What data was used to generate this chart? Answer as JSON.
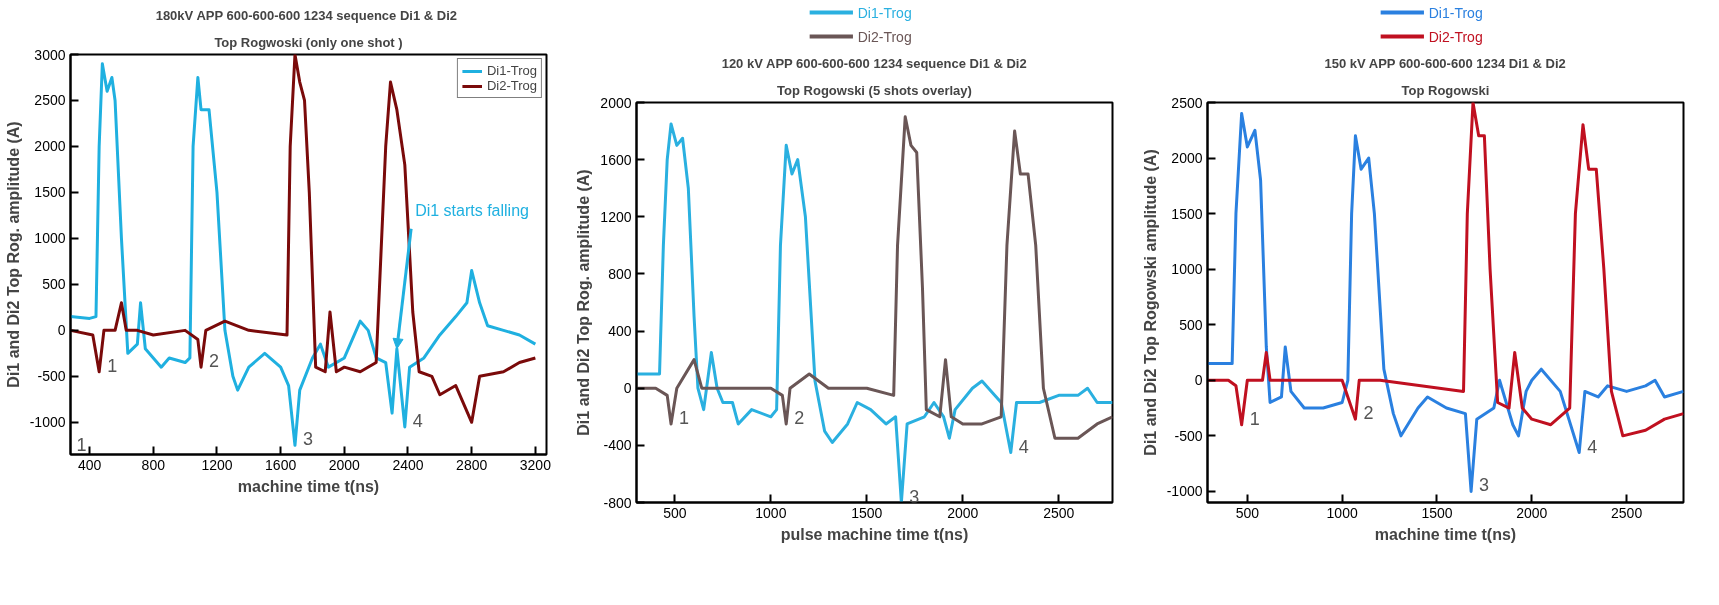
{
  "chart_data": [
    {
      "type": "line",
      "title": "180kV APP 600-600-600 1234 sequence Di1 &  Di2",
      "subtitle": "Top Rogwoski (only one shot )",
      "xlabel": "machine time t(ns)",
      "ylabel": "Di1 and Di2 Top Rog. amplitude (A)",
      "xlim": [
        280,
        3270
      ],
      "ylim": [
        -1350,
        3000
      ],
      "xticks": [
        400,
        800,
        1200,
        1600,
        2000,
        2400,
        2800,
        3200
      ],
      "yticks": [
        -1000,
        -500,
        0,
        500,
        1000,
        1500,
        2000,
        2500,
        3000
      ],
      "grid": false,
      "legend": "top right",
      "marker": "none",
      "line_style": "solid",
      "series": [
        {
          "name": "Di1-Trog",
          "color": "#1fb0e0",
          "x": [
            280,
            400,
            440,
            460,
            480,
            510,
            540,
            560,
            600,
            640,
            700,
            720,
            750,
            800,
            850,
            900,
            1000,
            1030,
            1050,
            1080,
            1100,
            1150,
            1200,
            1250,
            1300,
            1330,
            1400,
            1500,
            1600,
            1650,
            1690,
            1720,
            1800,
            1850,
            1900,
            2000,
            2100,
            2150,
            2200,
            2260,
            2300,
            2330,
            2380,
            2410,
            2500,
            2600,
            2700,
            2770,
            2800,
            2850,
            2900,
            3000,
            3100,
            3200
          ],
          "values": [
            150,
            130,
            150,
            2000,
            2900,
            2600,
            2750,
            2500,
            1000,
            -250,
            -150,
            300,
            -200,
            -300,
            -400,
            -300,
            -350,
            -300,
            2000,
            2750,
            2400,
            2400,
            1500,
            0,
            -500,
            -650,
            -400,
            -250,
            -400,
            -600,
            -1250,
            -650,
            -300,
            -150,
            -400,
            -300,
            100,
            0,
            -300,
            -350,
            -900,
            -200,
            -1050,
            -400,
            -300,
            -50,
            150,
            300,
            650,
            300,
            50,
            0,
            -50,
            -150
          ]
        },
        {
          "name": "Di2-Trog",
          "color": "#7a0a0a",
          "x": [
            280,
            420,
            460,
            490,
            560,
            600,
            630,
            700,
            800,
            1000,
            1080,
            1100,
            1130,
            1250,
            1400,
            1640,
            1660,
            1690,
            1720,
            1750,
            1780,
            1820,
            1880,
            1910,
            1950,
            2000,
            2100,
            2200,
            2260,
            2290,
            2330,
            2380,
            2430,
            2470,
            2550,
            2600,
            2700,
            2800,
            2850,
            3000,
            3100,
            3200
          ],
          "values": [
            0,
            -50,
            -450,
            0,
            0,
            300,
            0,
            0,
            -50,
            0,
            -100,
            -400,
            0,
            100,
            0,
            -50,
            2000,
            3000,
            2700,
            2500,
            1500,
            -400,
            -450,
            200,
            -450,
            -400,
            -450,
            -350,
            2000,
            2700,
            2400,
            1800,
            200,
            -450,
            -500,
            -700,
            -600,
            -1000,
            -500,
            -450,
            -350,
            -300
          ]
        }
      ],
      "annotations": [
        {
          "text": "1",
          "x": 460,
          "y": -450
        },
        {
          "text": "2",
          "x": 1100,
          "y": -400
        },
        {
          "text": "3",
          "x": 1690,
          "y": -1250
        },
        {
          "text": "4",
          "x": 2380,
          "y": -1050
        },
        "1",
        {
          "text": "Di1 starts falling",
          "x": 2330,
          "y": -200
        }
      ]
    },
    {
      "type": "line",
      "title": "120 kV APP 600-600-600 1234 sequence Di1 & Di2",
      "subtitle": "Top Rogowski (5 shots overlay)",
      "xlabel": "pulse machine time t(ns)",
      "ylabel": "Di1 and Di2 Top Rog. amplitude (A)",
      "xlim": [
        300,
        2780
      ],
      "ylim": [
        -800,
        2000
      ],
      "xticks": [
        500,
        1000,
        1500,
        2000,
        2500
      ],
      "yticks": [
        -800,
        -400,
        0,
        400,
        800,
        1200,
        1600,
        2000
      ],
      "grid": false,
      "legend": "top",
      "marker": "none",
      "line_style": "solid",
      "series": [
        {
          "name": "Di1-Trog",
          "color": "#2ab0e0",
          "x": [
            300,
            420,
            440,
            460,
            480,
            510,
            540,
            570,
            600,
            620,
            650,
            690,
            720,
            750,
            800,
            830,
            900,
            1000,
            1030,
            1050,
            1080,
            1110,
            1140,
            1180,
            1230,
            1280,
            1320,
            1400,
            1450,
            1520,
            1600,
            1650,
            1680,
            1710,
            1800,
            1850,
            1900,
            1930,
            1960,
            2050,
            2100,
            2200,
            2250,
            2280,
            2350,
            2400,
            2500,
            2600,
            2650,
            2700,
            2780
          ],
          "values": [
            100,
            100,
            1000,
            1600,
            1850,
            1700,
            1750,
            1400,
            500,
            0,
            -150,
            250,
            0,
            -100,
            -100,
            -250,
            -150,
            -200,
            -150,
            1000,
            1700,
            1500,
            1600,
            1200,
            50,
            -300,
            -380,
            -250,
            -100,
            -150,
            -250,
            -200,
            -800,
            -250,
            -200,
            -100,
            -200,
            -350,
            -150,
            0,
            50,
            -100,
            -450,
            -100,
            -100,
            -100,
            -50,
            -50,
            0,
            -100,
            -100
          ]
        },
        {
          "name": "Di2-Trog",
          "color": "#6a5656",
          "x": [
            300,
            400,
            460,
            480,
            510,
            600,
            640,
            800,
            1000,
            1060,
            1080,
            1100,
            1200,
            1300,
            1500,
            1640,
            1660,
            1700,
            1730,
            1760,
            1790,
            1810,
            1880,
            1910,
            1940,
            2000,
            2100,
            2200,
            2230,
            2270,
            2300,
            2340,
            2380,
            2420,
            2480,
            2600,
            2700,
            2780
          ],
          "values": [
            0,
            0,
            -50,
            -250,
            0,
            200,
            0,
            0,
            0,
            -50,
            -250,
            0,
            100,
            0,
            0,
            -50,
            1000,
            1900,
            1700,
            1650,
            700,
            -150,
            -200,
            200,
            -200,
            -250,
            -250,
            -200,
            1000,
            1800,
            1500,
            1500,
            1000,
            0,
            -350,
            -350,
            -250,
            -200
          ]
        }
      ],
      "annotations": [
        {
          "text": "1",
          "x": 480,
          "y": -250
        },
        {
          "text": "2",
          "x": 1080,
          "y": -250
        },
        {
          "text": "3",
          "x": 1680,
          "y": -800
        },
        {
          "text": "4",
          "x": 2250,
          "y": -450
        }
      ]
    },
    {
      "type": "line",
      "title": "150 kV APP 600-600-600 1234 Di1 & Di2",
      "subtitle": "Top Rogowski",
      "xlabel": "machine time t(ns)",
      "ylabel": "Di1 and Di2 Top Rogowski amplitude (A)",
      "xlim": [
        290,
        2800
      ],
      "ylim": [
        -1100,
        2500
      ],
      "xticks": [
        500,
        1000,
        1500,
        2000,
        2500
      ],
      "yticks": [
        -1000,
        -500,
        0,
        500,
        1000,
        1500,
        2000,
        2500
      ],
      "grid": false,
      "legend": "top",
      "marker": "none",
      "line_style": "solid",
      "series": [
        {
          "name": "Di1-Trog",
          "color": "#2a80e0",
          "x": [
            290,
            420,
            440,
            470,
            500,
            540,
            570,
            600,
            620,
            680,
            700,
            730,
            800,
            900,
            1000,
            1030,
            1050,
            1070,
            1100,
            1140,
            1170,
            1220,
            1270,
            1310,
            1400,
            1450,
            1550,
            1650,
            1680,
            1710,
            1800,
            1830,
            1900,
            1930,
            1970,
            2000,
            2050,
            2150,
            2250,
            2280,
            2350,
            2400,
            2500,
            2600,
            2650,
            2700,
            2800
          ],
          "values": [
            150,
            150,
            1500,
            2400,
            2100,
            2250,
            1800,
            300,
            -200,
            -150,
            300,
            -100,
            -250,
            -250,
            -200,
            0,
            1500,
            2200,
            1900,
            2000,
            1500,
            100,
            -300,
            -500,
            -250,
            -150,
            -250,
            -300,
            -1000,
            -350,
            -250,
            0,
            -400,
            -500,
            -100,
            0,
            100,
            -100,
            -650,
            -100,
            -150,
            -50,
            -100,
            -50,
            0,
            -150,
            -100
          ]
        },
        {
          "name": "Di2-Trog",
          "color": "#c01020",
          "x": [
            290,
            400,
            440,
            470,
            500,
            580,
            600,
            620,
            800,
            1000,
            1070,
            1090,
            1200,
            1640,
            1660,
            1690,
            1720,
            1750,
            1780,
            1820,
            1880,
            1910,
            1950,
            2000,
            2100,
            2200,
            2230,
            2270,
            2300,
            2340,
            2380,
            2420,
            2480,
            2600,
            2700,
            2800
          ],
          "values": [
            0,
            0,
            -50,
            -400,
            0,
            0,
            250,
            0,
            0,
            0,
            -350,
            0,
            0,
            -100,
            1500,
            2500,
            2200,
            2200,
            1000,
            -200,
            -250,
            250,
            -250,
            -350,
            -400,
            -250,
            1500,
            2300,
            1900,
            1900,
            1000,
            -100,
            -500,
            -450,
            -350,
            -300
          ]
        }
      ],
      "annotations": [
        {
          "text": "1",
          "x": 470,
          "y": -400
        },
        {
          "text": "2",
          "x": 1070,
          "y": -350
        },
        {
          "text": "3",
          "x": 1680,
          "y": -1000
        },
        {
          "text": "4",
          "x": 2250,
          "y": -650
        }
      ]
    }
  ]
}
